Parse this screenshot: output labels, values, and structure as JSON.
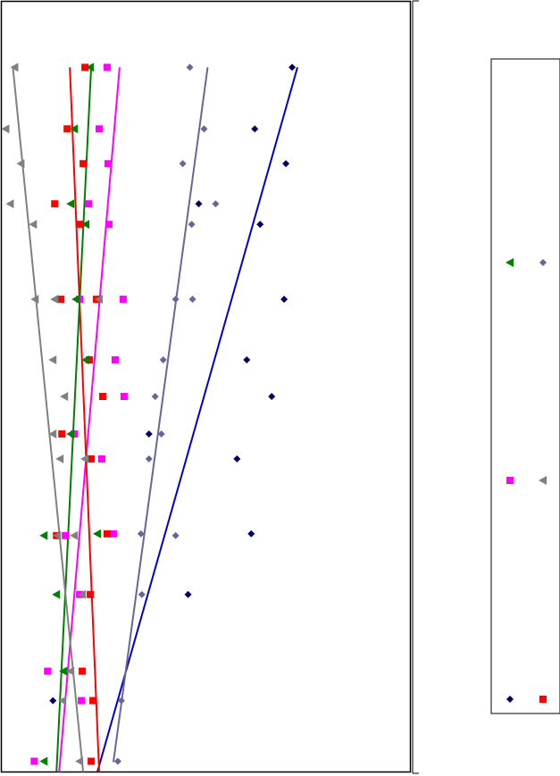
{
  "chart_data": {
    "type": "scatter",
    "title": "",
    "xlabel": "",
    "ylabel": "",
    "xlim": [
      0,
      460
    ],
    "ylim": [
      0,
      864
    ],
    "grid": false,
    "legend_position": "right",
    "colors": {
      "navy": "#000066",
      "slate": "#666699",
      "gray": "#808080",
      "magenta": "#ff00ff",
      "red": "#ff0000",
      "green": "#008000",
      "blue": "#0000cc"
    },
    "series": [
      {
        "marker": "diamond",
        "color": "#000066",
        "points": [
          [
            327,
            74
          ],
          [
            285,
            143
          ],
          [
            320,
            182
          ],
          [
            222,
            227
          ],
          [
            291,
            250
          ],
          [
            318,
            334
          ],
          [
            276,
            402
          ],
          [
            304,
            443
          ],
          [
            166,
            485
          ],
          [
            265,
            513
          ],
          [
            281,
            597
          ],
          [
            210,
            665
          ],
          [
            58,
            784
          ]
        ],
        "trend": {
          "color": "#0000cc",
          "from": [
            333,
            74
          ],
          "to": [
            108,
            864
          ]
        }
      },
      {
        "marker": "diamond",
        "color": "#666699",
        "points": [
          [
            212,
            74
          ],
          [
            228,
            143
          ],
          [
            204,
            182
          ],
          [
            241,
            227
          ],
          [
            214,
            250
          ],
          [
            196,
            334
          ],
          [
            215,
            334
          ],
          [
            182,
            402
          ],
          [
            173,
            443
          ],
          [
            180,
            485
          ],
          [
            166,
            513
          ],
          [
            157,
            597
          ],
          [
            196,
            599
          ],
          [
            158,
            665
          ],
          [
            135,
            784
          ],
          [
            131,
            852
          ]
        ],
        "trend": {
          "color": "#666699",
          "from": [
            232,
            74
          ],
          "to": [
            126,
            853
          ]
        }
      },
      {
        "marker": "square",
        "color": "#ff00ff",
        "points": [
          [
            119,
            74
          ],
          [
            110,
            143
          ],
          [
            120,
            182
          ],
          [
            98,
            227
          ],
          [
            121,
            250
          ],
          [
            88,
            334
          ],
          [
            137,
            334
          ],
          [
            128,
            402
          ],
          [
            138,
            443
          ],
          [
            82,
            485
          ],
          [
            113,
            513
          ],
          [
            72,
            599
          ],
          [
            126,
            597
          ],
          [
            88,
            665
          ],
          [
            52,
            751
          ],
          [
            90,
            784
          ],
          [
            37,
            852
          ]
        ],
        "trend": {
          "color": "#ff00ff",
          "from": [
            133,
            74
          ],
          "to": [
            65,
            864
          ]
        }
      },
      {
        "marker": "square",
        "color": "#ff0000",
        "points": [
          [
            94,
            74
          ],
          [
            74,
            143
          ],
          [
            92,
            182
          ],
          [
            60,
            227
          ],
          [
            88,
            250
          ],
          [
            67,
            334
          ],
          [
            107,
            334
          ],
          [
            99,
            402
          ],
          [
            114,
            443
          ],
          [
            68,
            485
          ],
          [
            101,
            513
          ],
          [
            62,
            599
          ],
          [
            119,
            597
          ],
          [
            100,
            665
          ],
          [
            91,
            751
          ],
          [
            103,
            784
          ],
          [
            101,
            852
          ]
        ],
        "trend": {
          "color": "#ff0000",
          "from": [
            77,
            74
          ],
          "to": [
            110,
            864
          ]
        }
      },
      {
        "marker": "triangle",
        "color": "#008000",
        "points": [
          [
            100,
            74
          ],
          [
            82,
            143
          ],
          [
            78,
            227
          ],
          [
            95,
            250
          ],
          [
            84,
            334
          ],
          [
            95,
            402
          ],
          [
            78,
            485
          ],
          [
            48,
            599
          ],
          [
            108,
            597
          ],
          [
            62,
            665
          ],
          [
            70,
            751
          ],
          [
            48,
            852
          ]
        ],
        "trend": {
          "color": "#008000",
          "from": [
            101,
            74
          ],
          "to": [
            62,
            864
          ]
        }
      },
      {
        "marker": "triangle",
        "color": "#808080",
        "points": [
          [
            15,
            74
          ],
          [
            5,
            143
          ],
          [
            22,
            182
          ],
          [
            10,
            227
          ],
          [
            36,
            250
          ],
          [
            38,
            334
          ],
          [
            60,
            334
          ],
          [
            110,
            334
          ],
          [
            58,
            402
          ],
          [
            71,
            443
          ],
          [
            58,
            485
          ],
          [
            66,
            513
          ],
          [
            94,
            513
          ],
          [
            63,
            599
          ],
          [
            82,
            599
          ],
          [
            91,
            665
          ],
          [
            78,
            751
          ],
          [
            69,
            784
          ],
          [
            88,
            852
          ]
        ],
        "trend": {
          "color": "#808080",
          "from": [
            13,
            74
          ],
          "to": [
            92,
            864
          ]
        }
      }
    ],
    "legend": {
      "entries": [
        {
          "marker": "triangle",
          "color": "#008000"
        },
        {
          "marker": "diamond",
          "color": "#666699"
        },
        {
          "marker": "square",
          "color": "#ff00ff"
        },
        {
          "marker": "triangle",
          "color": "#808080"
        },
        {
          "marker": "diamond",
          "color": "#000066"
        },
        {
          "marker": "square",
          "color": "#ff0000"
        }
      ]
    }
  }
}
